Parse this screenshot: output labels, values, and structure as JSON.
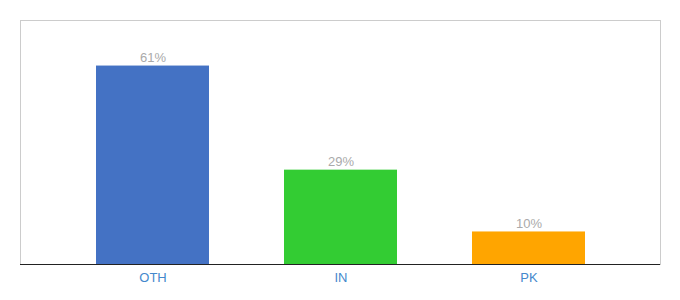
{
  "chart_data": {
    "type": "bar",
    "categories": [
      "OTH",
      "IN",
      "PK"
    ],
    "values": [
      61,
      29,
      10
    ],
    "value_labels": [
      "61%",
      "29%",
      "10%"
    ],
    "data_labels": true,
    "colors": [
      "#4472C4",
      "#33CC33",
      "#FFA500"
    ],
    "ylim": [
      0,
      75
    ],
    "tick_labels": "x"
  }
}
